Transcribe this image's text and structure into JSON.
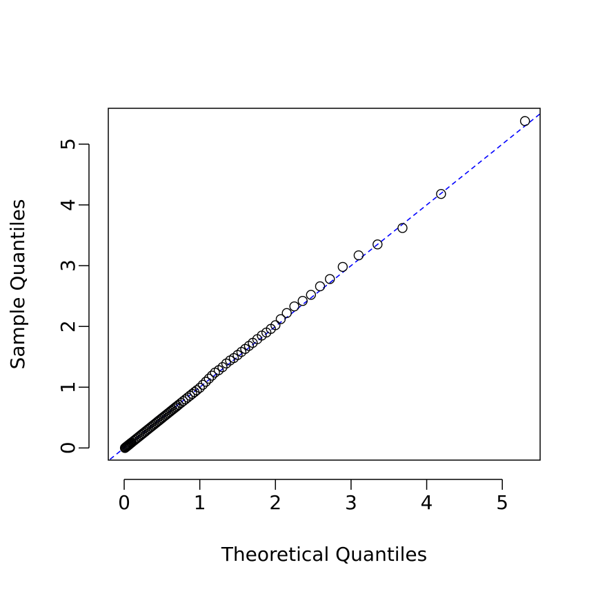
{
  "chart_data": {
    "type": "scatter",
    "title": "",
    "xlabel": "Theoretical Quantiles",
    "ylabel": "Sample Quantiles",
    "xlim": [
      -0.21,
      5.5
    ],
    "ylim": [
      -0.2,
      5.59
    ],
    "xticks": [
      "0",
      "1",
      "2",
      "3",
      "4",
      "5"
    ],
    "yticks": [
      "0",
      "1",
      "2",
      "3",
      "4",
      "5"
    ],
    "grid": false,
    "reference_line": {
      "slope": 1.0,
      "intercept": 0.0,
      "color": "#0000ff",
      "style": "dashed"
    },
    "point_color": "#000000",
    "series": [
      {
        "x": [
          0.01,
          0.02,
          0.03,
          0.04,
          0.05,
          0.06,
          0.07,
          0.08,
          0.09,
          0.1,
          0.12,
          0.14,
          0.16,
          0.18,
          0.2,
          0.22,
          0.24,
          0.26,
          0.28,
          0.3,
          0.32,
          0.34,
          0.36,
          0.38,
          0.4,
          0.42,
          0.44,
          0.46,
          0.48,
          0.5,
          0.52,
          0.54,
          0.56,
          0.58,
          0.6,
          0.62,
          0.64,
          0.66,
          0.68,
          0.7,
          0.72,
          0.75,
          0.78,
          0.81,
          0.84,
          0.87,
          0.9,
          0.93,
          0.96,
          1.0,
          1.04,
          1.08,
          1.12,
          1.16,
          1.2,
          1.25,
          1.3,
          1.35,
          1.4,
          1.45,
          1.5,
          1.55,
          1.6,
          1.65,
          1.7,
          1.76,
          1.82,
          1.88,
          1.94,
          2.0,
          2.07,
          2.15,
          2.25,
          2.36,
          2.47,
          2.59,
          2.72,
          2.89,
          3.1,
          3.35,
          3.68,
          4.19,
          5.3
        ],
        "y": [
          0.0,
          0.01,
          0.02,
          0.03,
          0.04,
          0.05,
          0.06,
          0.07,
          0.08,
          0.09,
          0.11,
          0.13,
          0.15,
          0.17,
          0.19,
          0.21,
          0.23,
          0.25,
          0.27,
          0.29,
          0.31,
          0.33,
          0.35,
          0.37,
          0.39,
          0.41,
          0.43,
          0.45,
          0.47,
          0.49,
          0.51,
          0.53,
          0.55,
          0.57,
          0.59,
          0.61,
          0.63,
          0.65,
          0.67,
          0.69,
          0.71,
          0.74,
          0.77,
          0.8,
          0.83,
          0.86,
          0.89,
          0.92,
          0.95,
          0.99,
          1.04,
          1.09,
          1.14,
          1.19,
          1.24,
          1.28,
          1.33,
          1.39,
          1.44,
          1.48,
          1.53,
          1.58,
          1.63,
          1.68,
          1.73,
          1.79,
          1.85,
          1.9,
          1.96,
          2.02,
          2.12,
          2.22,
          2.33,
          2.42,
          2.52,
          2.66,
          2.78,
          2.98,
          3.17,
          3.35,
          3.62,
          4.18,
          5.38
        ]
      }
    ]
  }
}
